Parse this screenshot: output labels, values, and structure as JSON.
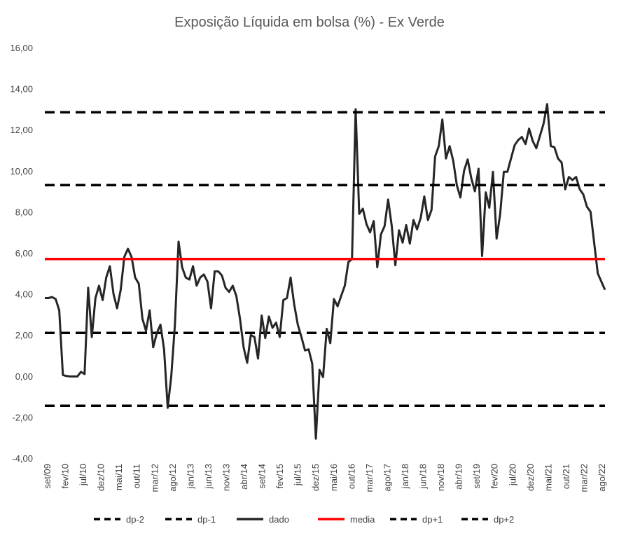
{
  "chart_data": {
    "type": "line",
    "title": "Exposição Líquida em bolsa (%) - Ex Verde",
    "xlabel": "",
    "ylabel": "",
    "ylim": [
      -4,
      16
    ],
    "y_ticks": [
      "-4,00",
      "-2,00",
      "0,00",
      "2,00",
      "4,00",
      "6,00",
      "8,00",
      "10,00",
      "12,00",
      "14,00",
      "16,00"
    ],
    "y_tick_values": [
      -4,
      -2,
      0,
      2,
      4,
      6,
      8,
      10,
      12,
      14,
      16
    ],
    "x_ticks": [
      "set/09",
      "fev/10",
      "jul/10",
      "dez/10",
      "mai/11",
      "out/11",
      "mar/12",
      "ago/12",
      "jan/13",
      "jun/13",
      "nov/13",
      "abr/14",
      "set/14",
      "fev/15",
      "jul/15",
      "dez/15",
      "mai/16",
      "out/16",
      "mar/17",
      "ago/17",
      "jan/18",
      "jun/18",
      "nov/18",
      "abr/19",
      "set/19",
      "fev/20",
      "jul/20",
      "dez/20",
      "mai/21",
      "out/21",
      "mar/22",
      "ago/22"
    ],
    "grid": false,
    "legend_position": "bottom",
    "series": [
      {
        "name": "dp-2",
        "style": "dashed",
        "color": "#000000",
        "constant": -1.45
      },
      {
        "name": "dp-1",
        "style": "dashed",
        "color": "#000000",
        "constant": 2.1
      },
      {
        "name": "dado",
        "style": "solid",
        "color": "#262626",
        "values": [
          3.8,
          3.8,
          3.85,
          3.75,
          3.2,
          0.05,
          0.0,
          -0.02,
          -0.02,
          -0.02,
          0.2,
          0.1,
          4.3,
          1.9,
          3.8,
          4.4,
          3.7,
          4.8,
          5.35,
          4.0,
          3.3,
          4.2,
          5.8,
          6.2,
          5.8,
          4.8,
          4.5,
          2.8,
          2.2,
          3.2,
          1.4,
          2.1,
          2.5,
          1.3,
          -1.55,
          0.0,
          2.5,
          6.55,
          5.3,
          4.8,
          4.7,
          5.35,
          4.4,
          4.8,
          4.95,
          4.6,
          3.3,
          5.1,
          5.1,
          4.9,
          4.3,
          4.1,
          4.4,
          3.9,
          2.8,
          1.4,
          0.65,
          2.0,
          1.9,
          0.85,
          2.95,
          1.85,
          2.9,
          2.35,
          2.6,
          1.9,
          3.7,
          3.8,
          4.8,
          3.5,
          2.5,
          1.9,
          1.25,
          1.3,
          0.6,
          -3.05,
          0.3,
          -0.05,
          2.3,
          1.6,
          3.75,
          3.4,
          3.9,
          4.4,
          5.55,
          5.7,
          13.0,
          7.9,
          8.15,
          7.4,
          7.0,
          7.55,
          5.3,
          6.9,
          7.3,
          8.6,
          7.3,
          5.4,
          7.1,
          6.5,
          7.35,
          6.45,
          7.6,
          7.15,
          7.7,
          8.75,
          7.6,
          8.1,
          10.7,
          11.2,
          12.5,
          10.6,
          11.2,
          10.5,
          9.3,
          8.7,
          10.0,
          10.55,
          9.65,
          9.0,
          10.1,
          5.85,
          8.95,
          8.2,
          9.95,
          6.7,
          7.9,
          9.95,
          9.95,
          10.6,
          11.25,
          11.5,
          11.65,
          11.3,
          12.05,
          11.45,
          11.1,
          11.7,
          12.3,
          13.25,
          11.2,
          11.15,
          10.6,
          10.4,
          9.1,
          9.7,
          9.55,
          9.7,
          9.1,
          8.85,
          8.25,
          8.0,
          6.5,
          5.0,
          4.6,
          4.2
        ]
      },
      {
        "name": "media",
        "style": "solid",
        "color": "#ff0000",
        "constant": 5.7
      },
      {
        "name": "dp+1",
        "style": "dashed",
        "color": "#000000",
        "constant": 9.3
      },
      {
        "name": "dp+2",
        "style": "dashed",
        "color": "#000000",
        "constant": 12.85
      }
    ]
  }
}
